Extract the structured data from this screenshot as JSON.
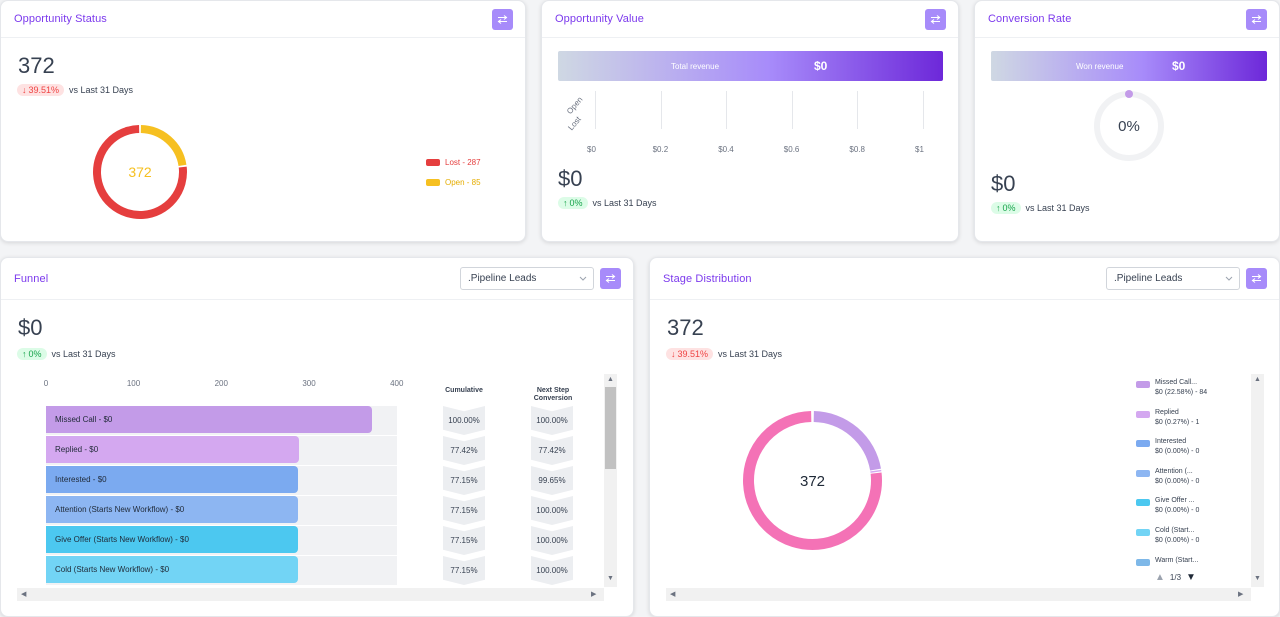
{
  "opportunity_status": {
    "title": "Opportunity Status",
    "total": "372",
    "change": "39.51%",
    "compare_label": "vs Last 31 Days",
    "donut_center": "372",
    "legend": [
      {
        "label": "Lost - 287",
        "color": "#e53e3e",
        "value": 287
      },
      {
        "label": "Open - 85",
        "color": "#f6c021",
        "value": 85
      }
    ]
  },
  "opportunity_value": {
    "title": "Opportunity Value",
    "revenue_label": "Total revenue",
    "revenue_value": "$0",
    "y_labels": [
      "Open",
      "Lost"
    ],
    "x_ticks": [
      "$0",
      "$0.2",
      "$0.4",
      "$0.6",
      "$0.8",
      "$1"
    ],
    "total": "$0",
    "change": "0%",
    "compare_label": "vs Last 31 Days"
  },
  "conversion_rate": {
    "title": "Conversion Rate",
    "revenue_label": "Won revenue",
    "revenue_value": "$0",
    "gauge_value": "0%",
    "total": "$0",
    "change": "0%",
    "compare_label": "vs Last 31 Days"
  },
  "funnel": {
    "title": "Funnel",
    "pipeline": ".Pipeline Leads",
    "total": "$0",
    "change": "0%",
    "compare_label": "vs Last 31 Days",
    "x_ticks": [
      "0",
      "100",
      "200",
      "300",
      "400"
    ],
    "col_cumulative": "Cumulative",
    "col_next_1": "Next Step",
    "col_next_2": "Conversion",
    "rows": [
      {
        "label": "Missed Call - $0",
        "count": 372,
        "color": "#c39be8",
        "cumulative": "100.00%",
        "next": "100.00%"
      },
      {
        "label": "Replied - $0",
        "count": 288,
        "color": "#d4a8f0",
        "cumulative": "77.42%",
        "next": "77.42%"
      },
      {
        "label": "Interested - $0",
        "count": 287,
        "color": "#7baaf0",
        "cumulative": "77.15%",
        "next": "99.65%"
      },
      {
        "label": "Attention (Starts New Workflow) - $0",
        "count": 287,
        "color": "#8db6f2",
        "cumulative": "77.15%",
        "next": "100.00%"
      },
      {
        "label": "Give Offer (Starts New Workflow) - $0",
        "count": 287,
        "color": "#4cc8f0",
        "cumulative": "77.15%",
        "next": "100.00%"
      },
      {
        "label": "Cold (Starts New Workflow) - $0",
        "count": 287,
        "color": "#72d4f5",
        "cumulative": "77.15%",
        "next": "100.00%"
      }
    ]
  },
  "stage_distribution": {
    "title": "Stage Distribution",
    "pipeline": ".Pipeline Leads",
    "total": "372",
    "change": "39.51%",
    "compare_label": "vs Last 31 Days",
    "donut_center": "372",
    "page": "1/3",
    "legend": [
      {
        "name": "Missed Call...",
        "detail": "$0 (22.58%) - 84",
        "color": "#c39be8",
        "value": 84
      },
      {
        "name": "Replied",
        "detail": "$0 (0.27%) - 1",
        "color": "#d4a8f0",
        "value": 1
      },
      {
        "name": "Interested",
        "detail": "$0 (0.00%) - 0",
        "color": "#7baaf0",
        "value": 0
      },
      {
        "name": "Attention (...",
        "detail": "$0 (0.00%) - 0",
        "color": "#8db6f2",
        "value": 0
      },
      {
        "name": "Give Offer ...",
        "detail": "$0 (0.00%) - 0",
        "color": "#4cc8f0",
        "value": 0
      },
      {
        "name": "Cold (Start...",
        "detail": "$0 (0.00%) - 0",
        "color": "#72d4f5",
        "value": 0
      },
      {
        "name": "Warm (Start...",
        "detail": "",
        "color": "#7eb8e8",
        "value": 0
      }
    ],
    "remainder_color": "#f472b6"
  },
  "colors": {
    "accent": "#7c3aed",
    "filter_button": "#a78bfa"
  }
}
